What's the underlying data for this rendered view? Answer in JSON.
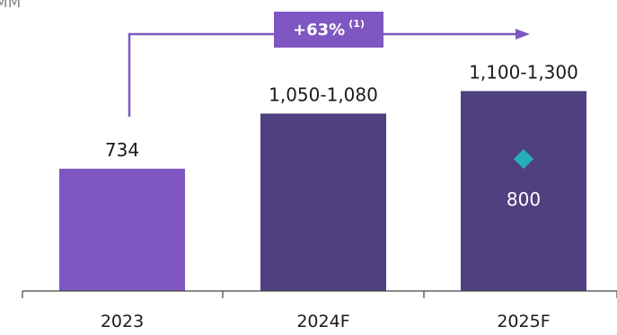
{
  "unit_label": "MM",
  "growth_badge": {
    "text": "+63%",
    "footnote": "(1)"
  },
  "colors": {
    "actual": "#7e57c2",
    "forecast": "#4f4080",
    "marker": "#25b0b7",
    "arrow": "#7e57c2"
  },
  "chart_data": {
    "type": "bar",
    "categories": [
      "2023",
      "2024F",
      "2025F"
    ],
    "values": [
      734,
      1065,
      1200
    ],
    "value_labels": [
      "734",
      "1,050-1,080",
      "1,100-1,300"
    ],
    "marker": {
      "category": "2025F",
      "value": 800,
      "label": "800",
      "shape": "diamond"
    },
    "ylim": [
      0,
      1300
    ],
    "grid": false,
    "title": "",
    "xlabel": "",
    "ylabel": ""
  }
}
